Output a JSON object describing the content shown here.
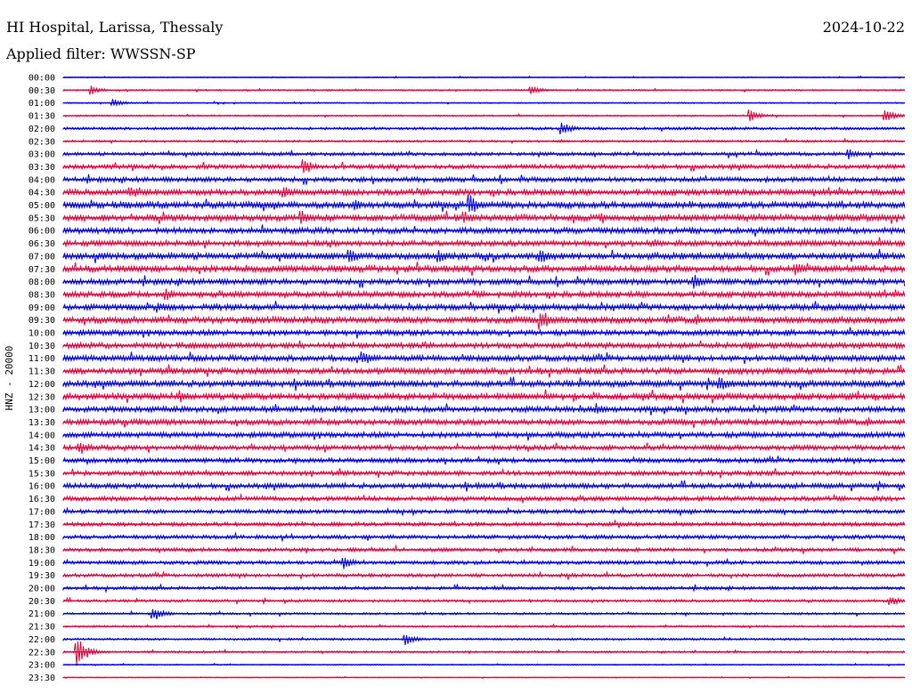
{
  "header": {
    "station": "HI Hospital, Larissa, Thessaly",
    "date": "2024-10-22",
    "filter_label": "Applied filter: WWSSN-SP"
  },
  "chart_data": {
    "type": "line",
    "chart_kind": "helicorder",
    "ylabel": "HNZ - 20000",
    "row_labels": [
      "00:00",
      "00:30",
      "01:00",
      "01:30",
      "02:00",
      "02:30",
      "03:00",
      "03:30",
      "04:00",
      "04:30",
      "05:00",
      "05:30",
      "06:00",
      "06:30",
      "07:00",
      "07:30",
      "08:00",
      "08:30",
      "09:00",
      "09:30",
      "10:00",
      "10:30",
      "11:00",
      "11:30",
      "12:00",
      "12:30",
      "13:00",
      "13:30",
      "14:00",
      "14:30",
      "15:00",
      "15:30",
      "16:00",
      "16:30",
      "17:00",
      "17:30",
      "18:00",
      "18:30",
      "19:00",
      "19:30",
      "20:00",
      "20:30",
      "21:00",
      "21:30",
      "22:00",
      "22:30",
      "23:00",
      "23:30"
    ],
    "trace_colors": [
      "#0000e6",
      "#e6003c"
    ],
    "noise_level": [
      0.5,
      0.7,
      0.6,
      0.7,
      1.2,
      1.0,
      1.6,
      2.0,
      2.2,
      2.6,
      3.0,
      3.0,
      2.7,
      2.6,
      3.0,
      3.0,
      2.6,
      2.6,
      2.8,
      3.0,
      2.5,
      2.6,
      2.7,
      2.8,
      2.9,
      2.9,
      2.6,
      2.5,
      2.5,
      2.2,
      2.1,
      2.1,
      2.3,
      2.1,
      1.8,
      1.8,
      1.8,
      1.7,
      1.7,
      1.6,
      1.5,
      1.2,
      1.0,
      0.9,
      1.0,
      0.9,
      0.6,
      0.4
    ],
    "events": [
      {
        "row": 1,
        "minute": 1.0,
        "amplitude": 5
      },
      {
        "row": 1,
        "minute": 16.7,
        "amplitude": 6
      },
      {
        "row": 2,
        "minute": 1.8,
        "amplitude": 5
      },
      {
        "row": 3,
        "minute": 24.5,
        "amplitude": 7
      },
      {
        "row": 3,
        "minute": 29.3,
        "amplitude": 8
      },
      {
        "row": 4,
        "minute": 17.8,
        "amplitude": 7
      },
      {
        "row": 6,
        "minute": 28.0,
        "amplitude": 6
      },
      {
        "row": 7,
        "minute": 8.6,
        "amplitude": 9
      },
      {
        "row": 9,
        "minute": 2.4,
        "amplitude": 8
      },
      {
        "row": 9,
        "minute": 7.9,
        "amplitude": 8
      },
      {
        "row": 10,
        "minute": 14.5,
        "amplitude": 12
      },
      {
        "row": 10,
        "minute": 10.4,
        "amplitude": 7
      },
      {
        "row": 11,
        "minute": 8.5,
        "amplitude": 9
      },
      {
        "row": 11,
        "minute": 14.3,
        "amplitude": 8
      },
      {
        "row": 14,
        "minute": 10.2,
        "amplitude": 10
      },
      {
        "row": 14,
        "minute": 13.4,
        "amplitude": 8
      },
      {
        "row": 14,
        "minute": 17.0,
        "amplitude": 9
      },
      {
        "row": 15,
        "minute": 26.1,
        "amplitude": 9
      },
      {
        "row": 16,
        "minute": 22.5,
        "amplitude": 10
      },
      {
        "row": 17,
        "minute": 3.7,
        "amplitude": 7
      },
      {
        "row": 18,
        "minute": 3.4,
        "amplitude": 7
      },
      {
        "row": 19,
        "minute": 17.0,
        "amplitude": 14
      },
      {
        "row": 22,
        "minute": 10.7,
        "amplitude": 8
      },
      {
        "row": 24,
        "minute": 23.4,
        "amplitude": 9
      },
      {
        "row": 25,
        "minute": 4.2,
        "amplitude": 8
      },
      {
        "row": 26,
        "minute": 19.0,
        "amplitude": 7
      },
      {
        "row": 29,
        "minute": 0.6,
        "amplitude": 9
      },
      {
        "row": 38,
        "minute": 10.0,
        "amplitude": 8
      },
      {
        "row": 42,
        "minute": 3.2,
        "amplitude": 9
      },
      {
        "row": 44,
        "minute": 12.2,
        "amplitude": 7
      },
      {
        "row": 45,
        "minute": 0.5,
        "amplitude": 16
      },
      {
        "row": 41,
        "minute": 29.5,
        "amplitude": 6
      }
    ]
  }
}
